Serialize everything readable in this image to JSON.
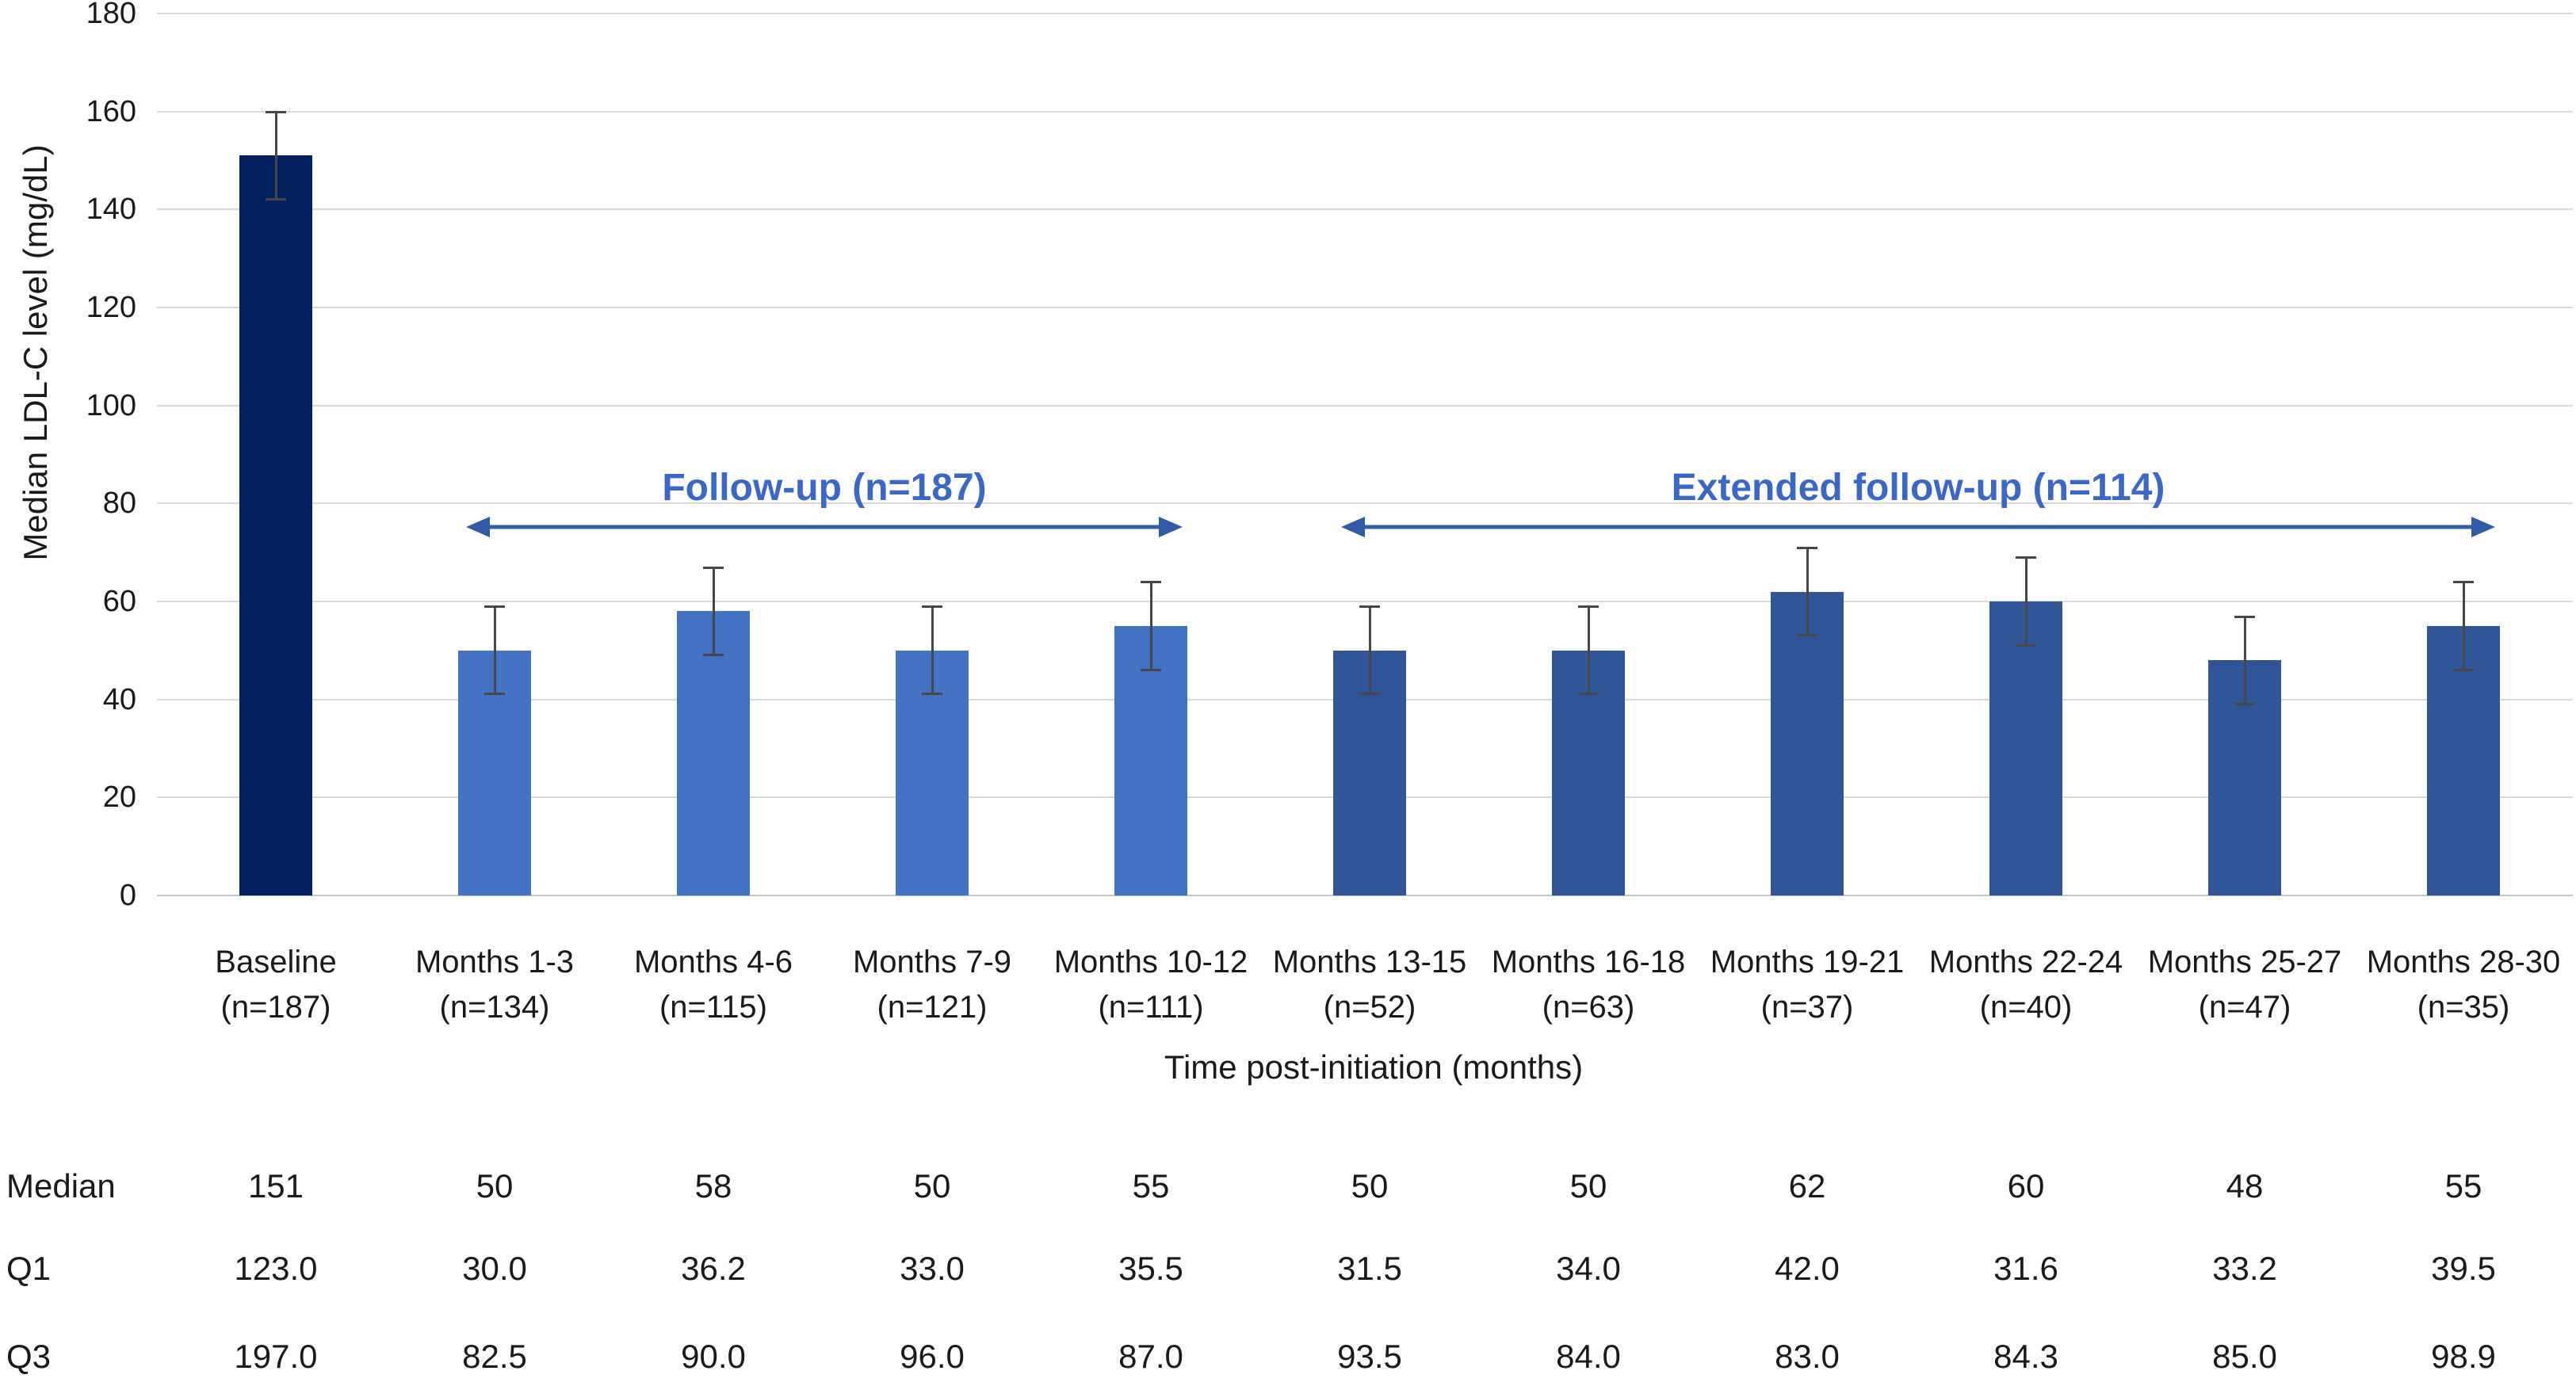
{
  "colors": {
    "baseline": "#02215E",
    "followup": "#4472C4",
    "extended": "#2F5597",
    "error_bar": "#474747",
    "gridline": "#D9D9D9",
    "axis_line": "#C6C6C6",
    "annotation_text": "#3968C8",
    "annotation_arrow": "#2F5BA7",
    "text": "#1A1A1A"
  },
  "chart_data": {
    "type": "bar",
    "title": "",
    "ylabel": "Median LDL-C level (mg/dL)",
    "xlabel": "Time post-initiation (months)",
    "ylim": [
      0,
      180
    ],
    "ytick_step": 20,
    "grid": true,
    "legend_position": "none",
    "categories": [
      {
        "period": "Baseline",
        "n": "(n=187)"
      },
      {
        "period": "Months 1-3",
        "n": "(n=134)"
      },
      {
        "period": "Months 4-6",
        "n": "(n=115)"
      },
      {
        "period": "Months 7-9",
        "n": "(n=121)"
      },
      {
        "period": "Months 10-12",
        "n": "(n=111)"
      },
      {
        "period": "Months 13-15",
        "n": "(n=52)"
      },
      {
        "period": "Months 16-18",
        "n": "(n=63)"
      },
      {
        "period": "Months 19-21",
        "n": "(n=37)"
      },
      {
        "period": "Months 22-24",
        "n": "(n=40)"
      },
      {
        "period": "Months 25-27",
        "n": "(n=47)"
      },
      {
        "period": "Months 28-30",
        "n": "(n=35)"
      }
    ],
    "groups": [
      "baseline",
      "followup",
      "followup",
      "followup",
      "followup",
      "extended",
      "extended",
      "extended",
      "extended",
      "extended",
      "extended"
    ],
    "series": [
      {
        "name": "Median LDL-C level",
        "values": [
          151,
          50,
          58,
          50,
          55,
          50,
          50,
          62,
          60,
          48,
          55
        ]
      }
    ],
    "error_bars": {
      "low": [
        142,
        41,
        49,
        41,
        46,
        41,
        41,
        53,
        51,
        39,
        46
      ],
      "high": [
        160,
        59,
        67,
        59,
        64,
        59,
        59,
        71,
        69,
        57,
        64
      ]
    },
    "annotations": [
      {
        "label": "Follow-up (n=187)",
        "from_index": 1,
        "to_index": 4
      },
      {
        "label": "Extended follow-up (n=114)",
        "from_index": 5,
        "to_index": 10
      }
    ],
    "table": {
      "rows": [
        {
          "label": "Median",
          "values": [
            "151",
            "50",
            "58",
            "50",
            "55",
            "50",
            "50",
            "62",
            "60",
            "48",
            "55"
          ]
        },
        {
          "label": "Q1",
          "values": [
            "123.0",
            "30.0",
            "36.2",
            "33.0",
            "35.5",
            "31.5",
            "34.0",
            "42.0",
            "31.6",
            "33.2",
            "39.5"
          ]
        },
        {
          "label": "Q3",
          "values": [
            "197.0",
            "82.5",
            "90.0",
            "96.0",
            "87.0",
            "93.5",
            "84.0",
            "83.0",
            "84.3",
            "85.0",
            "98.9"
          ]
        }
      ]
    }
  }
}
